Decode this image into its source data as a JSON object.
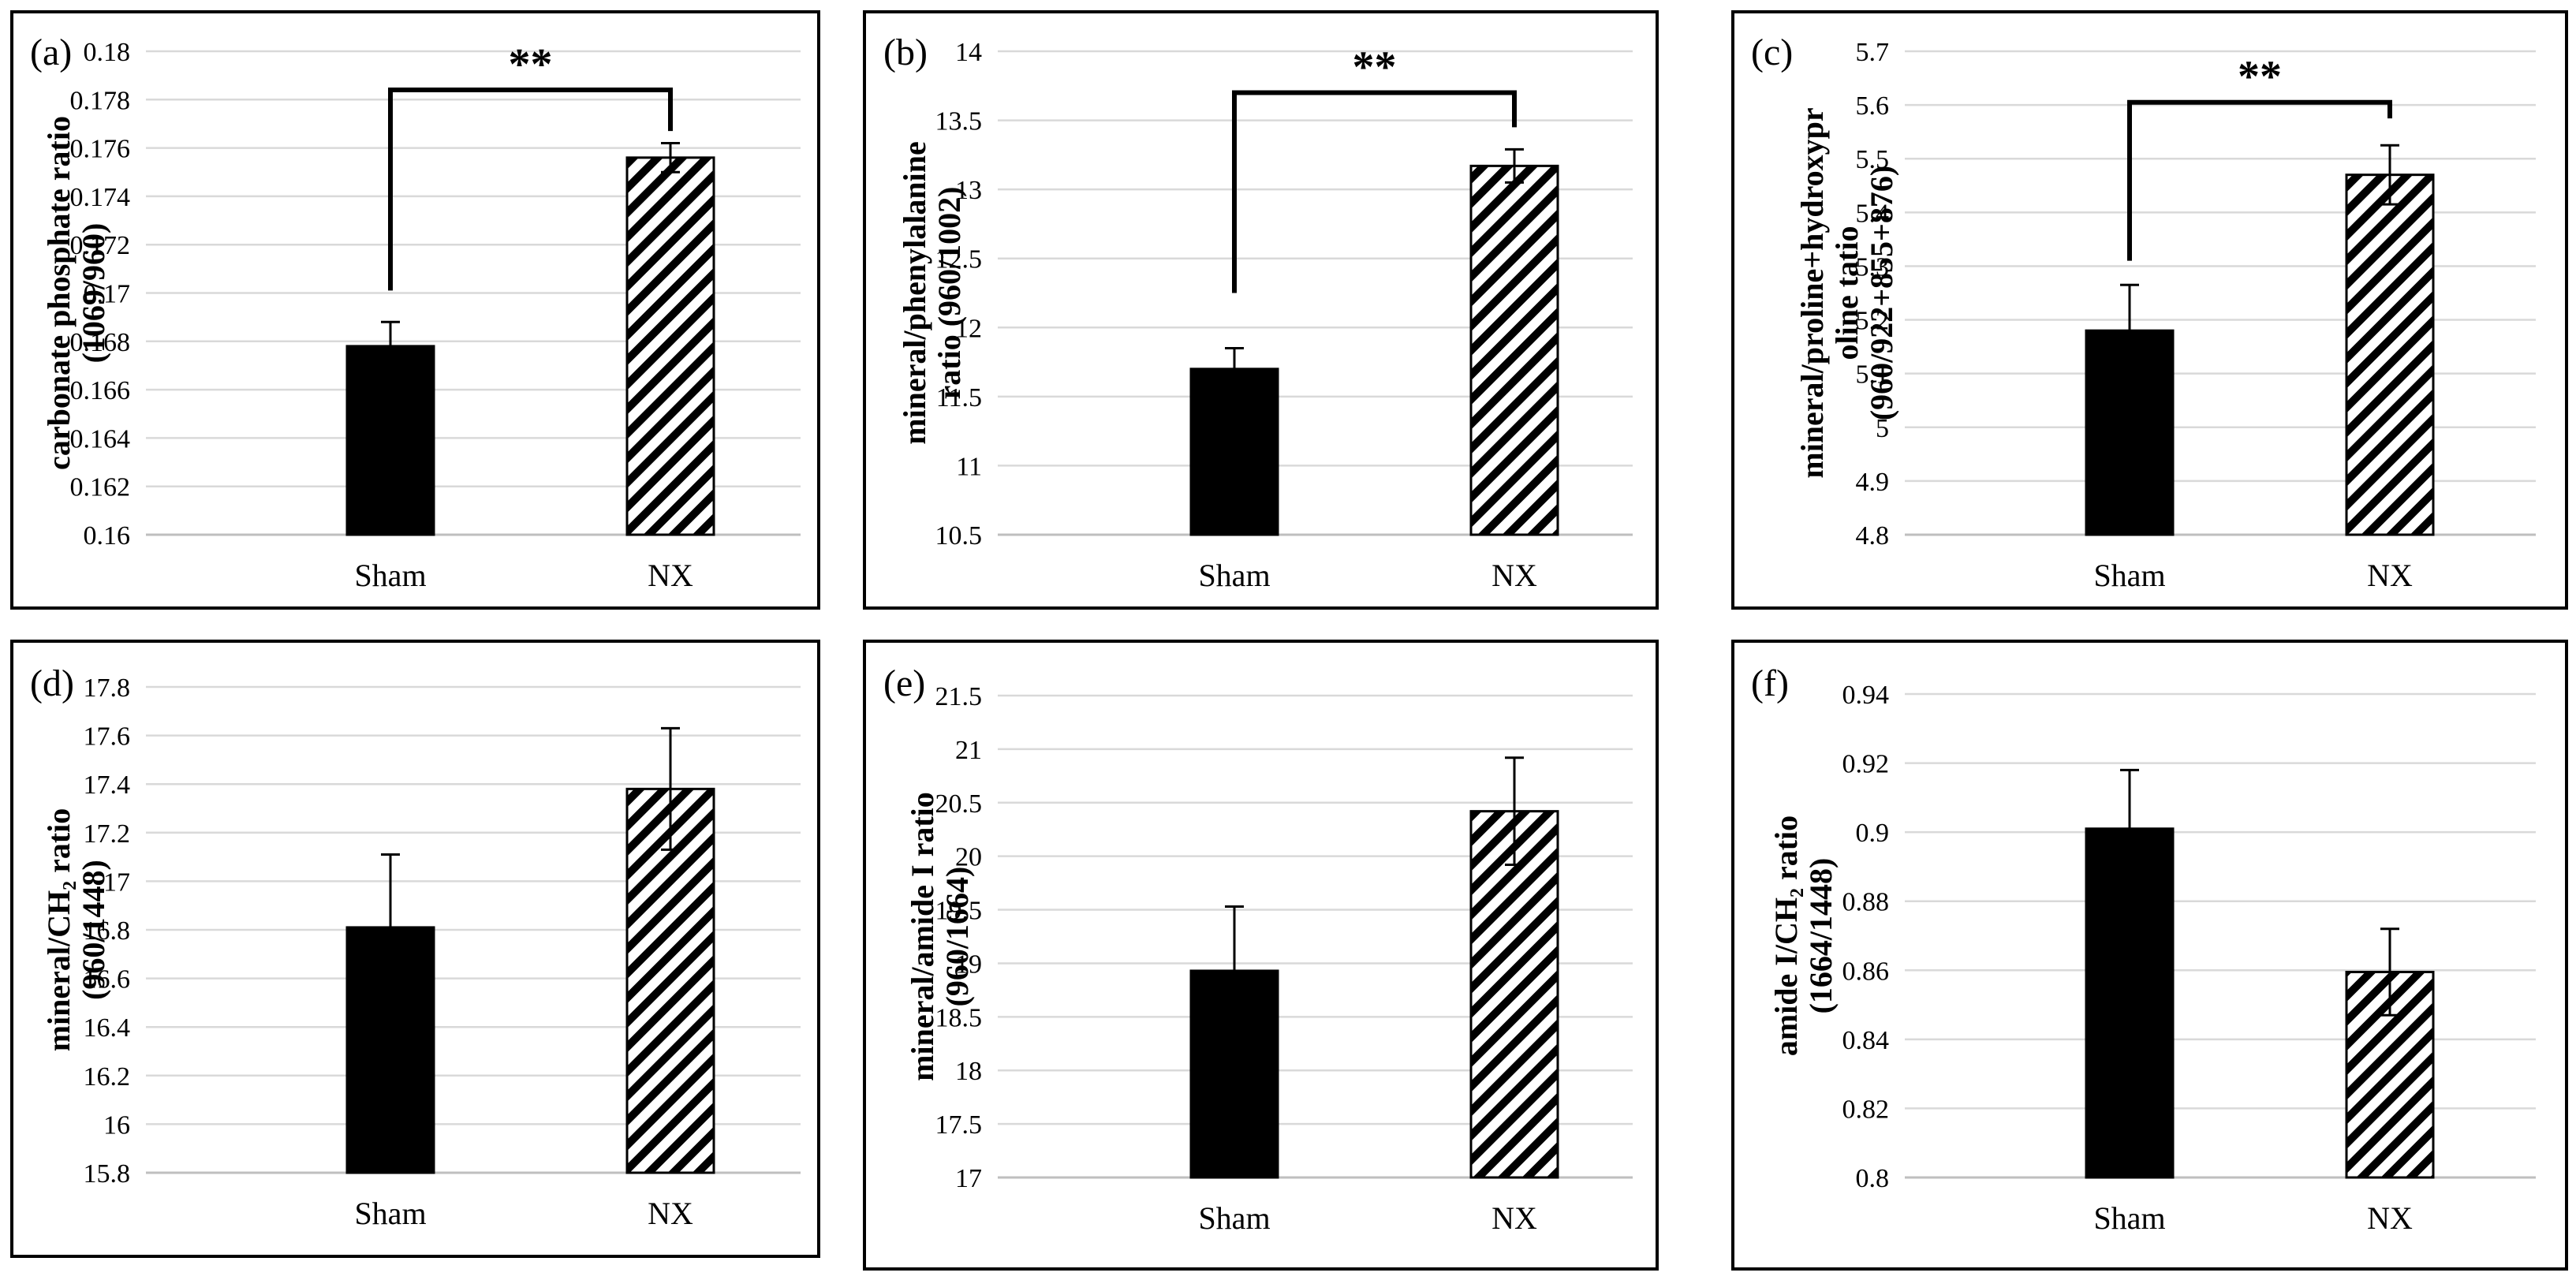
{
  "chart_data": [
    {
      "type": "bar",
      "panel": "(a)",
      "categories": [
        "Sham",
        "NX"
      ],
      "values": [
        0.1678,
        0.1756
      ],
      "errors": [
        0.001,
        0.0006
      ],
      "bar_styles": [
        "solid",
        "hatched"
      ],
      "ylabel_lines": [
        "carbonate phosphate ratio",
        "(1069/960)"
      ],
      "ylim": [
        0.16,
        0.18
      ],
      "yticks": [
        0.16,
        0.162,
        0.164,
        0.166,
        0.168,
        0.17,
        0.172,
        0.174,
        0.176,
        0.178,
        0.18
      ],
      "ytick_labels": [
        "0.16",
        "0.162",
        "0.164",
        "0.166",
        "0.168",
        "0.17",
        "0.172",
        "0.174",
        "0.176",
        "0.178",
        "0.18"
      ],
      "significance": "**",
      "bracket_left": 0.1701,
      "bracket_top": 0.1784,
      "bracket_right": 0.1767
    },
    {
      "type": "bar",
      "panel": "(b)",
      "categories": [
        "Sham",
        "NX"
      ],
      "values": [
        11.7,
        13.17
      ],
      "errors": [
        0.15,
        0.12
      ],
      "bar_styles": [
        "solid",
        "hatched"
      ],
      "ylabel_lines": [
        "mineral/phenylalanine",
        "ratio (960/1002)"
      ],
      "ylim": [
        10.5,
        14
      ],
      "yticks": [
        10.5,
        11,
        11.5,
        12,
        12.5,
        13,
        13.5,
        14
      ],
      "ytick_labels": [
        "10.5",
        "11",
        "11.5",
        "12",
        "12.5",
        "13",
        "13.5",
        "14"
      ],
      "significance": "**",
      "bracket_left": 12.25,
      "bracket_top": 13.7,
      "bracket_right": 13.45
    },
    {
      "type": "bar",
      "panel": "(c)",
      "categories": [
        "Sham",
        "NX"
      ],
      "values": [
        5.18,
        5.47
      ],
      "errors": [
        0.085,
        0.055
      ],
      "bar_styles": [
        "solid",
        "hatched"
      ],
      "ylabel_lines": [
        "mineral/proline+hydroxypr",
        "oline tatio",
        "(960/922+855+876)"
      ],
      "ylim": [
        4.8,
        5.7
      ],
      "yticks": [
        4.8,
        4.9,
        5,
        5.1,
        5.2,
        5.3,
        5.4,
        5.5,
        5.6,
        5.7
      ],
      "ytick_labels": [
        "4.8",
        "4.9",
        "5",
        "5.1",
        "5.2",
        "5.3",
        "5.4",
        "5.5",
        "5.6",
        "5.7"
      ],
      "significance": "**",
      "bracket_left": 5.31,
      "bracket_top": 5.605,
      "bracket_right": 5.575
    },
    {
      "type": "bar",
      "panel": "(d)",
      "categories": [
        "Sham",
        "NX"
      ],
      "values": [
        16.81,
        17.38
      ],
      "errors": [
        0.3,
        0.25
      ],
      "bar_styles": [
        "solid",
        "hatched"
      ],
      "ylabel_lines": [
        "mineral/CH₂ ratio",
        "(960/1448)"
      ],
      "ylim": [
        15.8,
        17.8
      ],
      "yticks": [
        15.8,
        16,
        16.2,
        16.4,
        16.6,
        16.8,
        17,
        17.2,
        17.4,
        17.6,
        17.8
      ],
      "ytick_labels": [
        "15.8",
        "16",
        "16.2",
        "16.4",
        "16.6",
        "16.8",
        "17",
        "17.2",
        "17.4",
        "17.6",
        "17.8"
      ],
      "significance": ""
    },
    {
      "type": "bar",
      "panel": "(e)",
      "categories": [
        "Sham",
        "NX"
      ],
      "values": [
        18.93,
        20.42
      ],
      "errors": [
        0.6,
        0.5
      ],
      "bar_styles": [
        "solid",
        "hatched"
      ],
      "ylabel_lines": [
        "mineral/amide I ratio",
        "(960/1664)"
      ],
      "ylim": [
        17,
        21.5
      ],
      "yticks": [
        17,
        17.5,
        18,
        18.5,
        19,
        19.5,
        20,
        20.5,
        21,
        21.5
      ],
      "ytick_labels": [
        "17",
        "17.5",
        "18",
        "18.5",
        "19",
        "19.5",
        "20",
        "20.5",
        "21",
        "21.5"
      ],
      "significance": ""
    },
    {
      "type": "bar",
      "panel": "(f)",
      "categories": [
        "Sham",
        "NX"
      ],
      "values": [
        0.901,
        0.8595
      ],
      "errors": [
        0.017,
        0.0125
      ],
      "bar_styles": [
        "solid",
        "hatched"
      ],
      "ylabel_lines": [
        "amide I/CH₂ ratio",
        "(1664/1448)"
      ],
      "ylim": [
        0.8,
        0.94
      ],
      "yticks": [
        0.8,
        0.82,
        0.84,
        0.86,
        0.88,
        0.9,
        0.92,
        0.94
      ],
      "ytick_labels": [
        "0.8",
        "0.82",
        "0.84",
        "0.86",
        "0.88",
        "0.9",
        "0.92",
        "0.94"
      ],
      "significance": ""
    }
  ]
}
